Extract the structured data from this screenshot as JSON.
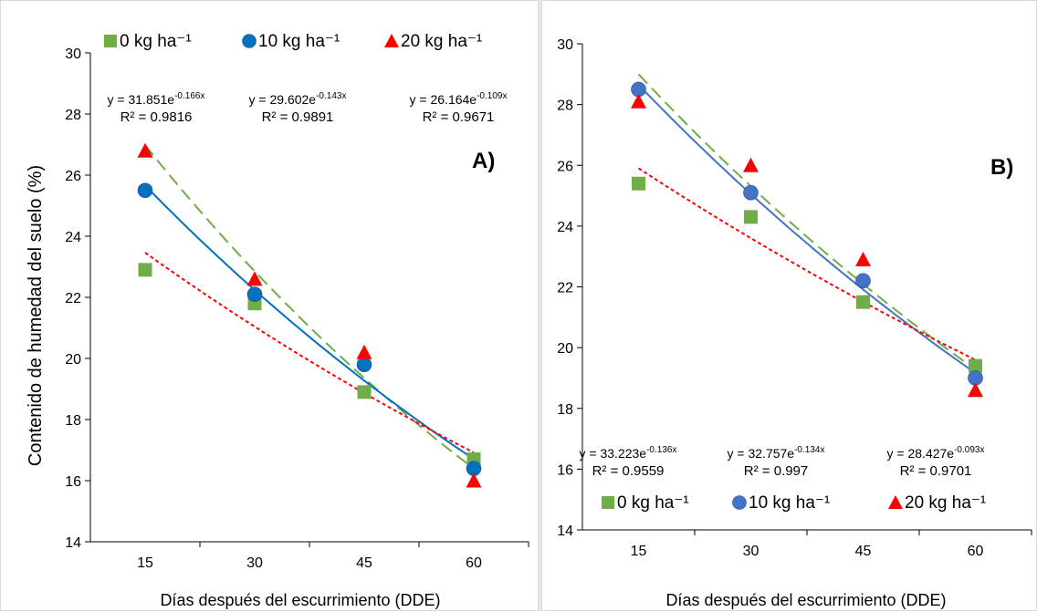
{
  "chart_data": [
    {
      "id": "A",
      "type": "scatter",
      "panel_label": "A)",
      "xlabel": "Días después del escurrimiento (DDE)",
      "ylabel": "Contenido de humedad del suelo (%)",
      "x": [
        15,
        30,
        45,
        60
      ],
      "xticks": [
        "15",
        "30",
        "45",
        "60"
      ],
      "yticks": [
        "14",
        "16",
        "18",
        "20",
        "22",
        "24",
        "26",
        "28",
        "30"
      ],
      "ylim": [
        14,
        30
      ],
      "legend_position": "top",
      "series": [
        {
          "name": "0 kg ha⁻¹",
          "marker": "square",
          "color": "#70ad47",
          "line": "long-dash",
          "values": [
            22.9,
            21.8,
            18.9,
            16.7
          ],
          "equation": "y = 31.851e",
          "exponent": "-0.166x",
          "r2": "R² = 0.9816",
          "fit": {
            "a": 31.851,
            "b": -0.166
          }
        },
        {
          "name": "10 kg ha⁻¹",
          "marker": "circle",
          "color": "#0070c0",
          "line": "solid",
          "values": [
            25.5,
            22.1,
            19.8,
            16.4
          ],
          "equation": "y = 29.602e",
          "exponent": "-0.143x",
          "r2": "R² = 0.9891",
          "fit": {
            "a": 29.602,
            "b": -0.143
          }
        },
        {
          "name": "20 kg ha⁻¹",
          "marker": "triangle",
          "color": "#ff0000",
          "line": "dotted",
          "values": [
            26.8,
            22.6,
            20.2,
            16.0
          ],
          "equation": "y = 26.164e",
          "exponent": "-0.109x",
          "r2": "R² = 0.9671",
          "fit": {
            "a": 26.164,
            "b": -0.109
          }
        }
      ]
    },
    {
      "id": "B",
      "type": "scatter",
      "panel_label": "B)",
      "xlabel": "Días después del escurrimiento (DDE)",
      "ylabel": "",
      "x": [
        15,
        30,
        45,
        60
      ],
      "xticks": [
        "15",
        "30",
        "45",
        "60"
      ],
      "yticks": [
        "14",
        "16",
        "18",
        "20",
        "22",
        "24",
        "26",
        "28",
        "30"
      ],
      "ylim": [
        14,
        30
      ],
      "legend_position": "bottom",
      "series": [
        {
          "name": "0 kg ha⁻¹",
          "marker": "square",
          "color": "#70ad47",
          "line": "long-dash",
          "values": [
            25.4,
            24.3,
            21.5,
            19.4
          ],
          "equation": "y = 33.223e",
          "exponent": "-0.136x",
          "r2": "R² = 0.9559",
          "fit": {
            "a": 33.223,
            "b": -0.136
          }
        },
        {
          "name": "10 kg ha⁻¹",
          "marker": "circle",
          "color": "#4472c4",
          "line": "solid",
          "values": [
            28.5,
            25.1,
            22.2,
            19.0
          ],
          "equation": "y = 32.757e",
          "exponent": "-0.134x",
          "r2": "R² = 0.997",
          "fit": {
            "a": 32.757,
            "b": -0.134
          }
        },
        {
          "name": "20 kg ha⁻¹",
          "marker": "triangle",
          "color": "#ff0000",
          "line": "dotted",
          "values": [
            28.1,
            26.0,
            22.9,
            18.6
          ],
          "equation": "y = 28.427e",
          "exponent": "-0.093x",
          "r2": "R² = 0.9701",
          "fit": {
            "a": 28.427,
            "b": -0.093
          }
        }
      ]
    }
  ]
}
